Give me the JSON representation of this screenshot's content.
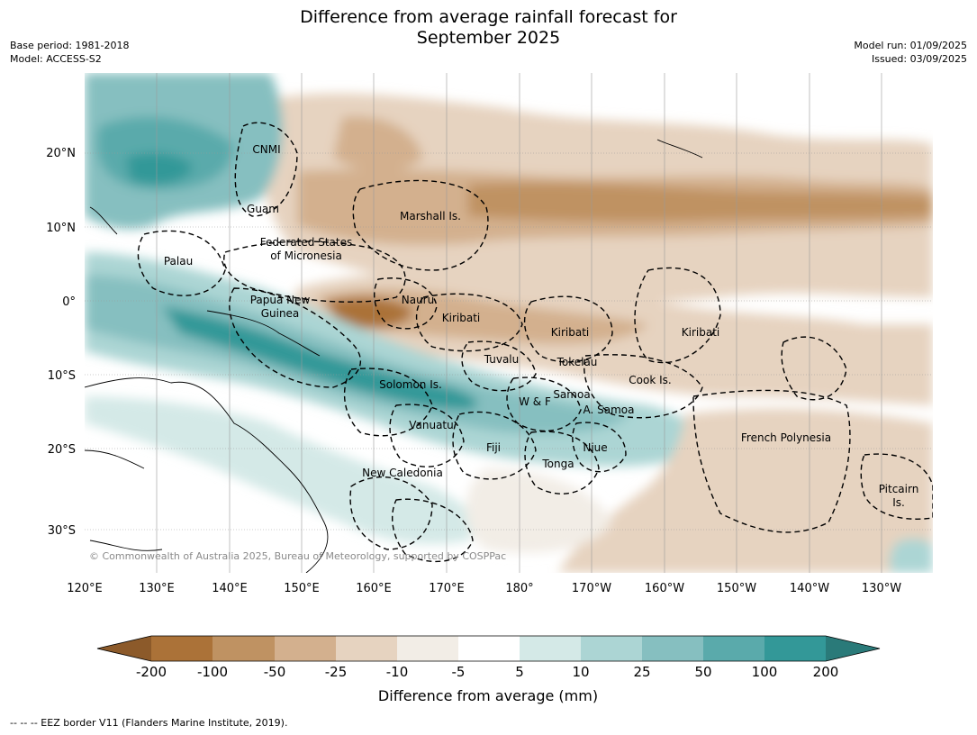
{
  "header": {
    "title_line1": "Difference from average rainfall forecast for",
    "title_line2": "September 2025",
    "base_period": "Base period: 1981-2018",
    "model": "Model: ACCESS-S2",
    "model_run": "Model run: 01/09/2025",
    "issued": "Issued: 03/09/2025"
  },
  "map": {
    "lat_labels": [
      "20°N",
      "10°N",
      "0°",
      "10°S",
      "20°S",
      "30°S"
    ],
    "lon_labels": [
      "120°E",
      "130°E",
      "140°E",
      "150°E",
      "160°E",
      "170°E",
      "180°",
      "170°W",
      "160°W",
      "150°W",
      "140°W",
      "130°W"
    ],
    "places": [
      {
        "text": "CNMI"
      },
      {
        "text": "Guam"
      },
      {
        "text": "Marshall Is."
      },
      {
        "text": "Federated States"
      },
      {
        "text": "of Micronesia"
      },
      {
        "text": "Palau"
      },
      {
        "text": "Papua New"
      },
      {
        "text": "Guinea"
      },
      {
        "text": "Nauru"
      },
      {
        "text": "Kiribati"
      },
      {
        "text": "Kiribati"
      },
      {
        "text": "Kiribati"
      },
      {
        "text": "Tuvalu"
      },
      {
        "text": "Tokelau"
      },
      {
        "text": "Cook Is."
      },
      {
        "text": "Solomon Is."
      },
      {
        "text": "Samoa"
      },
      {
        "text": "W & F"
      },
      {
        "text": "A. Samoa"
      },
      {
        "text": "Vanuatu"
      },
      {
        "text": "Fiji"
      },
      {
        "text": "Niue"
      },
      {
        "text": "Tonga"
      },
      {
        "text": "French Polynesia"
      },
      {
        "text": "New Caledonia"
      },
      {
        "text": "Pitcairn"
      },
      {
        "text": "Is."
      }
    ],
    "copyright": "© Commonwealth of Australia 2025, Bureau of Meteorology, supported by COSPPac"
  },
  "colorbar": {
    "labels": [
      "-200",
      "-100",
      "-50",
      "-25",
      "-10",
      "-5",
      "5",
      "10",
      "25",
      "50",
      "100",
      "200"
    ],
    "colors": [
      "#8c5a2a",
      "#ab7238",
      "#bf9262",
      "#d3b08e",
      "#e6d3c0",
      "#f2ede6",
      "#ffffff",
      "#d4e9e7",
      "#acd5d4",
      "#86bfc0",
      "#5aaaab",
      "#339898",
      "#2a7a79"
    ],
    "title": "Difference from average (mm)"
  },
  "footer": {
    "text": "--  --  -- EEZ border V11 (Flanders Marine Institute, 2019)."
  }
}
